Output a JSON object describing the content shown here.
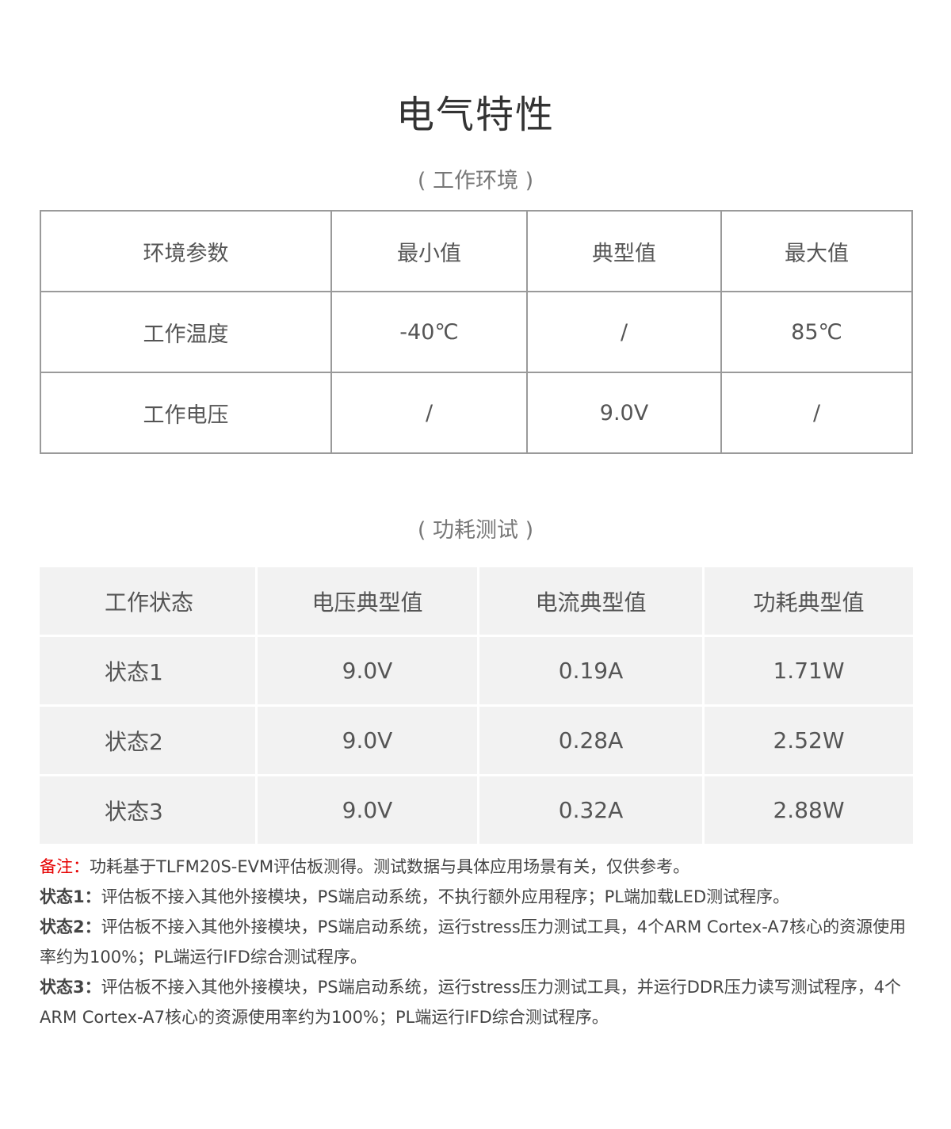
{
  "title": "电气特性",
  "env": {
    "subtitle": "( 工作环境 )",
    "headers": [
      "环境参数",
      "最小值",
      "典型值",
      "最大值"
    ],
    "rows": [
      [
        "工作温度",
        "-40℃",
        "/",
        "85℃"
      ],
      [
        "工作电压",
        "/",
        "9.0V",
        "/"
      ]
    ]
  },
  "power": {
    "subtitle": "( 功耗测试 )",
    "headers": [
      "工作状态",
      "电压典型值",
      "电流典型值",
      "功耗典型值"
    ],
    "rows": [
      [
        "状态1",
        "9.0V",
        "0.19A",
        "1.71W"
      ],
      [
        "状态2",
        "9.0V",
        "0.28A",
        "2.52W"
      ],
      [
        "状态3",
        "9.0V",
        "0.32A",
        "2.88W"
      ]
    ]
  },
  "notes": {
    "remark_label": "备注：",
    "remark": "功耗基于TLFM20S-EVM评估板测得。测试数据与具体应用场景有关，仅供参考。",
    "items": [
      {
        "label": "状态1：",
        "text": "评估板不接入其他外接模块，PS端启动系统，不执行额外应用程序；PL端加载LED测试程序。"
      },
      {
        "label": "状态2：",
        "text": "评估板不接入其他外接模块，PS端启动系统，运行stress压力测试工具，4个ARM Cortex-A7核心的资源使用率约为100%；PL端运行IFD综合测试程序。"
      },
      {
        "label": "状态3：",
        "text": "评估板不接入其他外接模块，PS端启动系统，运行stress压力测试工具，并运行DDR压力读写测试程序，4个ARM Cortex-A7核心的资源使用率约为100%；PL端运行IFD综合测试程序。"
      }
    ]
  },
  "colors": {
    "remark": "#e60000",
    "table_bg": "#f2f2f2",
    "border": "#9a9a9a"
  }
}
